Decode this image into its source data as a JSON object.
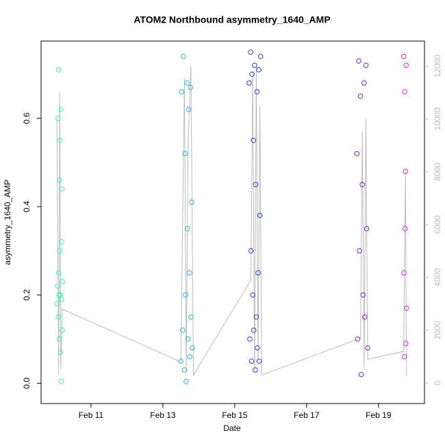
{
  "chart_data": {
    "type": "scatter",
    "title": "ATOM2 Northbound asymmetry_1640_AMP",
    "x_label": "Date",
    "y_label": "asymmetry_1640_AMP",
    "xlim": [
      9.61,
      20.28
    ],
    "xticks": [
      {
        "value": 11,
        "label": "Feb 11"
      },
      {
        "value": 13,
        "label": "Feb 13"
      },
      {
        "value": 15,
        "label": "Feb 15"
      },
      {
        "value": 17,
        "label": "Feb 17"
      },
      {
        "value": 19,
        "label": "Feb 19"
      }
    ],
    "ylim": [
      -0.046,
      0.775
    ],
    "yticks": [
      {
        "value": 0,
        "label": "0.0"
      },
      0.2,
      0.4,
      0.6
    ],
    "y2lim": [
      -777,
      12950
    ],
    "y2ticks": [
      0,
      2000,
      4000,
      6000,
      8000,
      10000,
      12000
    ],
    "series": [
      {
        "color": "#2ff5b8",
        "x": [
          10.05,
          10.07,
          10.08,
          10.09,
          10.1,
          10.1,
          10.11,
          10.12,
          10.12,
          10.13,
          10.14,
          10.15,
          10.15,
          10.16,
          10.17,
          10.18,
          10.18,
          10.19,
          10.2,
          10.2
        ],
        "values": [
          0.18,
          0.22,
          0.6,
          0.15,
          0.71,
          0.25,
          0.2,
          0.46,
          0.1,
          0.3,
          0.55,
          0.07,
          0.2,
          0.62,
          0.004,
          0.32,
          0.19,
          0.44,
          0.23,
          0.12
        ]
      },
      {
        "color": "#1fb8e8",
        "x": [
          13.5,
          13.52,
          13.55,
          13.57,
          13.6,
          13.62,
          13.63,
          13.65,
          13.67,
          13.68,
          13.7,
          13.72,
          13.74,
          13.75,
          13.77,
          13.78,
          13.8,
          13.82
        ],
        "values": [
          0.05,
          0.66,
          0.12,
          0.74,
          0.03,
          0.52,
          0.2,
          0.004,
          0.68,
          0.35,
          0.1,
          0.62,
          0.25,
          0.06,
          0.67,
          0.15,
          0.41,
          0.08
        ]
      },
      {
        "color": "#1f3fe8",
        "x": [
          15.4,
          15.42,
          15.44,
          15.45,
          15.47,
          15.48,
          15.5,
          15.52,
          15.53,
          15.55,
          15.57,
          15.58,
          15.6,
          15.62,
          15.63,
          15.65,
          15.67,
          15.68,
          15.7,
          15.72
        ],
        "values": [
          0.68,
          0.1,
          0.75,
          0.3,
          0.05,
          0.7,
          0.2,
          0.55,
          0.12,
          0.72,
          0.03,
          0.45,
          0.15,
          0.66,
          0.08,
          0.25,
          0.71,
          0.05,
          0.38,
          0.74
        ]
      },
      {
        "color": "#7a22e8",
        "x": [
          18.4,
          18.42,
          18.45,
          18.47,
          18.5,
          18.52,
          18.55,
          18.57,
          18.6,
          18.62,
          18.65,
          18.67,
          18.7
        ],
        "values": [
          0.52,
          0.1,
          0.73,
          0.3,
          0.65,
          0.02,
          0.45,
          0.2,
          0.68,
          0.15,
          0.72,
          0.35,
          0.08
        ]
      },
      {
        "color": "#dd22ee",
        "x": [
          19.7,
          19.71,
          19.72,
          19.73,
          19.74,
          19.75,
          19.76,
          19.77,
          19.78
        ],
        "values": [
          0.74,
          0.25,
          0.06,
          0.66,
          0.35,
          0.48,
          0.09,
          0.72,
          0.17
        ]
      },
      {
        "color": "#bbbbbb",
        "axis": "y2",
        "type": "line",
        "x": [
          10.05,
          10.1,
          10.13,
          10.16,
          10.2,
          13.5,
          13.6,
          13.65,
          13.7,
          13.78,
          13.85,
          15.45,
          15.5,
          15.55,
          15.6,
          15.65,
          15.7,
          15.75,
          18.5,
          18.55,
          18.6,
          18.65,
          18.7,
          19.7,
          19.75,
          19.78
        ],
        "values": [
          10000,
          300,
          11000,
          500,
          2800,
          800,
          11500,
          400,
          9000,
          12000,
          300,
          3900,
          11800,
          500,
          12000,
          800,
          10500,
          300,
          1700,
          9500,
          600,
          10000,
          900,
          1200,
          8000,
          250
        ]
      }
    ]
  }
}
